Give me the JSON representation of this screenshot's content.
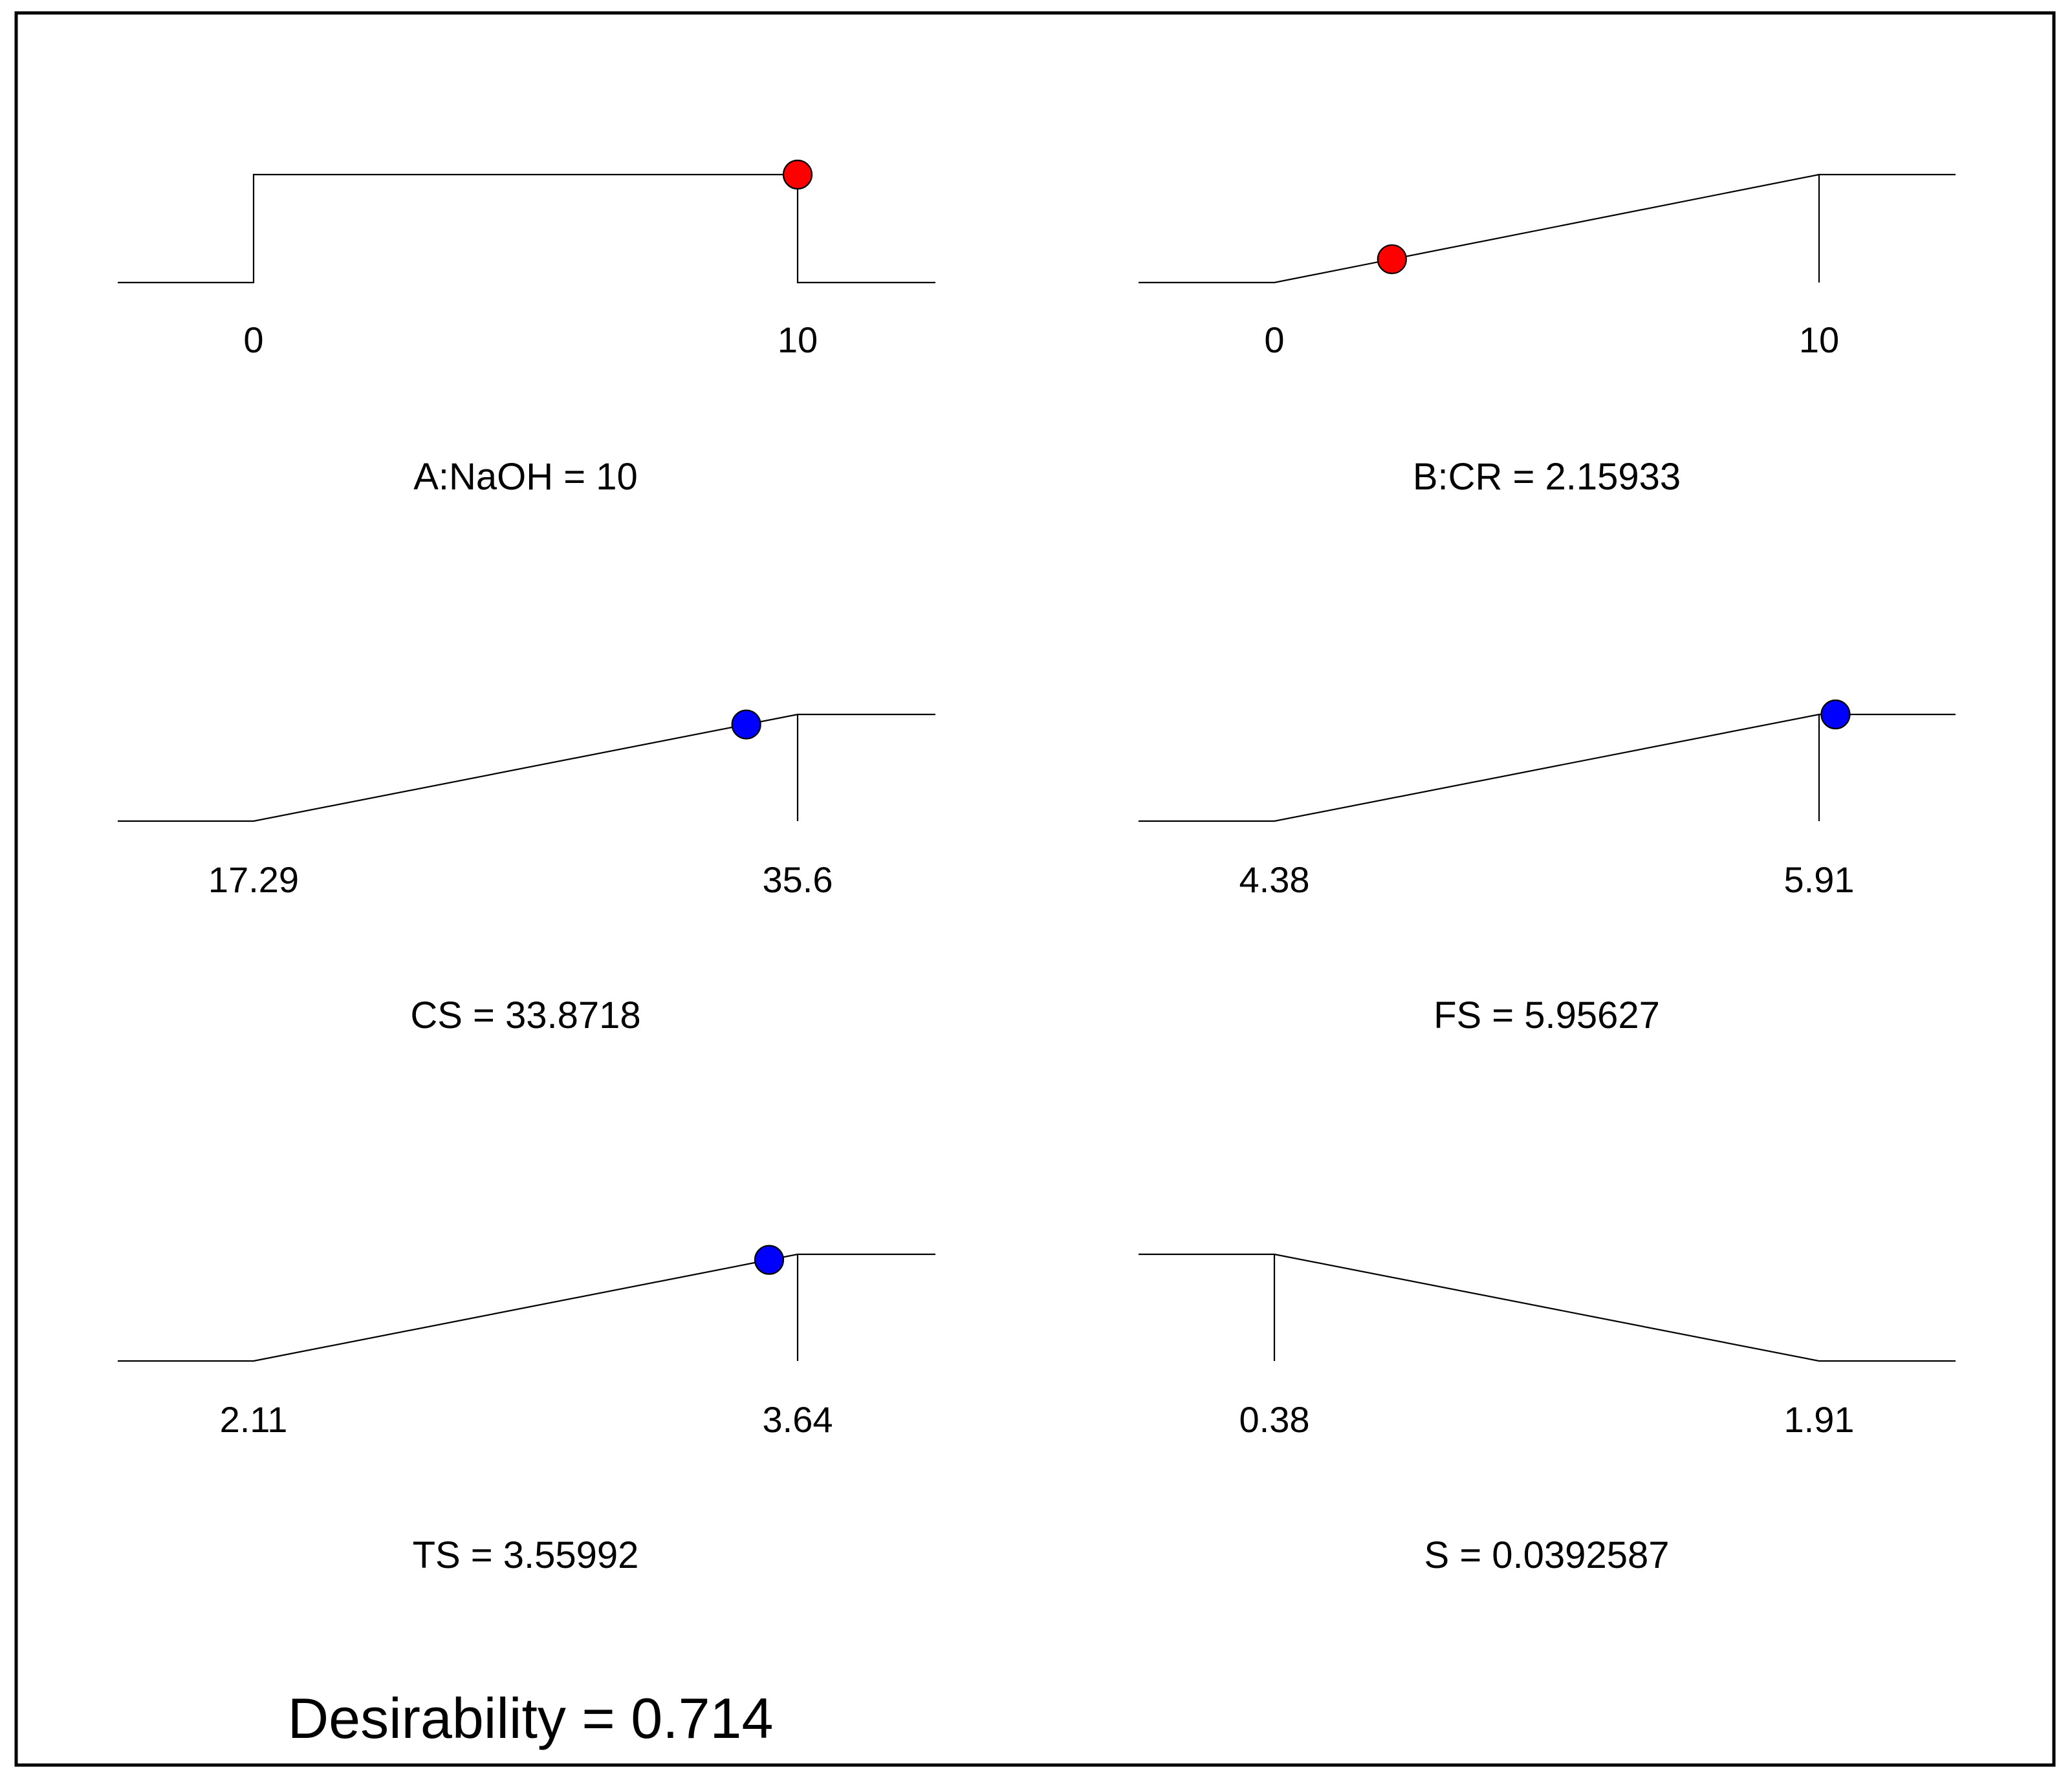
{
  "chart_data": {
    "type": "desirability-ramps",
    "desirability_label": "Desirability = 0.714",
    "desirability": 0.714,
    "colors": {
      "factor": "#ff0000",
      "response": "#0000ff",
      "line": "#000000",
      "background": "#ffffff"
    },
    "panels": [
      {
        "name": "A:NaOH",
        "title": "A:NaOH = 10",
        "value": 10,
        "low": 0,
        "high": 10,
        "low_label": "0",
        "high_label": "10",
        "goal": "in-range",
        "kind": "factor"
      },
      {
        "name": "B:CR",
        "title": "B:CR = 2.15933",
        "value": 2.15933,
        "low": 0,
        "high": 10,
        "low_label": "0",
        "high_label": "10",
        "goal": "maximize",
        "kind": "factor"
      },
      {
        "name": "CS",
        "title": "CS = 33.8718",
        "value": 33.8718,
        "low": 17.29,
        "high": 35.6,
        "low_label": "17.29",
        "high_label": "35.6",
        "goal": "maximize",
        "kind": "response"
      },
      {
        "name": "FS",
        "title": "FS = 5.95627",
        "value": 5.95627,
        "low": 4.38,
        "high": 5.91,
        "low_label": "4.38",
        "high_label": "5.91",
        "goal": "maximize",
        "kind": "response"
      },
      {
        "name": "TS",
        "title": "TS = 3.55992",
        "value": 3.55992,
        "low": 2.11,
        "high": 3.64,
        "low_label": "2.11",
        "high_label": "3.64",
        "goal": "maximize",
        "kind": "response"
      },
      {
        "name": "S",
        "title": "S = 0.0392587",
        "value": 0.0392587,
        "low": 0.38,
        "high": 1.91,
        "low_label": "0.38",
        "high_label": "1.91",
        "goal": "minimize",
        "kind": "response",
        "marker_shown": false
      }
    ]
  }
}
